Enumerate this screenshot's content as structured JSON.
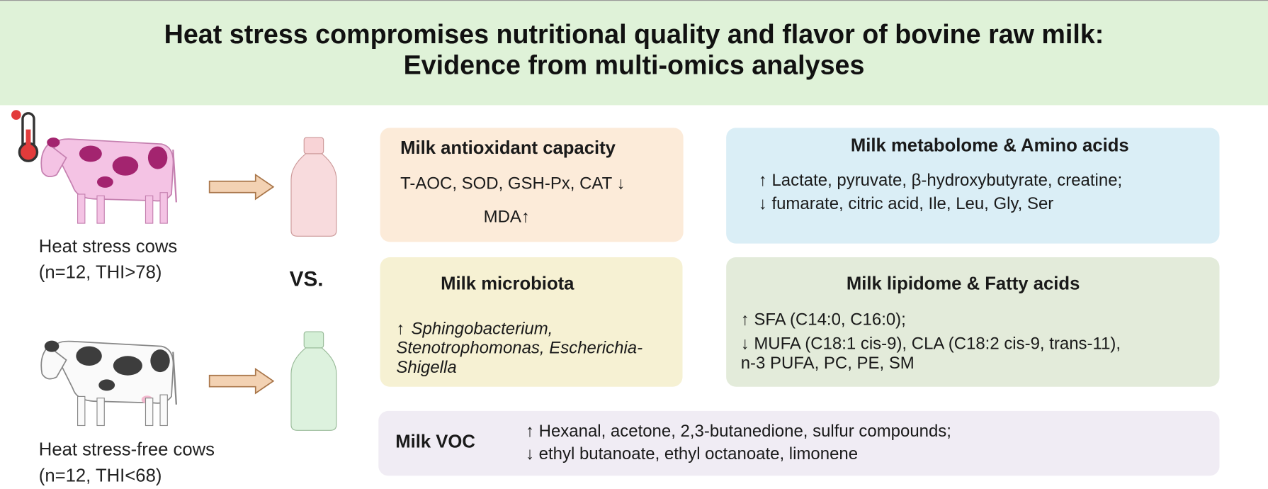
{
  "header": {
    "title_lines": [
      "Heat stress compromises nutritional quality and flavor of bovine raw milk:",
      "Evidence from multi-omics analyses"
    ]
  },
  "groups": [
    {
      "label": "Heat stress cows",
      "detail": "(n=12, THI>78)"
    },
    {
      "label": "Heat stress-free cows",
      "detail": "(n=12, THI<68)"
    }
  ],
  "comparison": "VS.",
  "panels": [
    {
      "title": "Milk antioxidant capacity",
      "lines": [
        "T-AOC, SOD, GSH-Px, CAT ↓",
        "MDA↑"
      ]
    },
    {
      "title": "Milk metabolome & Amino acids",
      "lines": [
        "↑ Lactate, pyruvate, β-hydroxybutyrate, creatine;",
        "↓ fumarate, citric acid, Ile, Leu, Gly, Ser"
      ]
    },
    {
      "title": "Milk microbiota",
      "arrow": "↑",
      "lines": [
        "Sphingobacterium,",
        "Stenotrophomonas, Escherichia-",
        "Shigella"
      ]
    },
    {
      "title": "Milk lipidome & Fatty acids",
      "lines": [
        "↑ SFA (C14:0, C16:0);",
        "↓ MUFA (C18:1 cis-9), CLA (C18:2 cis-9, trans-11),",
        "n-3 PUFA, PC, PE, SM"
      ]
    },
    {
      "title": "Milk VOC",
      "lines": [
        "↑ Hexanal, acetone, 2,3-butanedione, sulfur compounds;",
        "↓ ethyl butanoate, ethyl octanoate, limonene"
      ]
    }
  ]
}
